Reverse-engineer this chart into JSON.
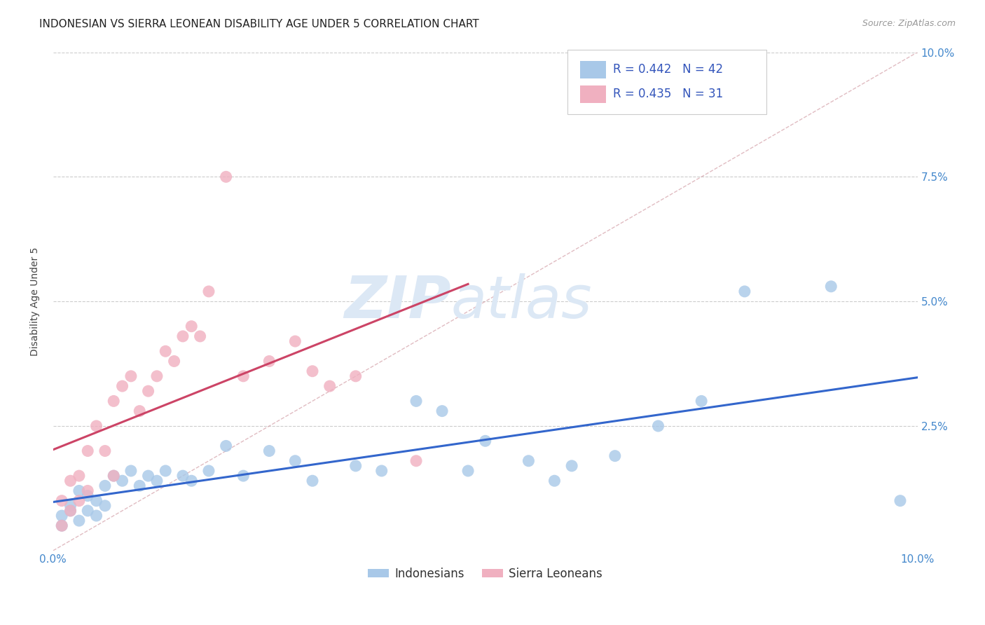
{
  "title": "INDONESIAN VS SIERRA LEONEAN DISABILITY AGE UNDER 5 CORRELATION CHART",
  "source": "Source: ZipAtlas.com",
  "ylabel": "Disability Age Under 5",
  "xlim": [
    0.0,
    0.1
  ],
  "ylim": [
    0.0,
    0.1
  ],
  "background_color": "#ffffff",
  "grid_color": "#cccccc",
  "diagonal_line_color": "#d4a0a8",
  "indonesian_color": "#a8c8e8",
  "sierra_leonean_color": "#f0b0c0",
  "indonesian_line_color": "#3366cc",
  "sierra_leonean_line_color": "#cc4466",
  "watermark_color": "#dce8f5",
  "tick_color": "#4488cc",
  "title_fontsize": 11,
  "axis_label_fontsize": 10,
  "tick_fontsize": 11,
  "legend_fontsize": 12,
  "source_fontsize": 9,
  "indonesian_x": [
    0.001,
    0.001,
    0.002,
    0.002,
    0.003,
    0.003,
    0.004,
    0.004,
    0.005,
    0.005,
    0.006,
    0.006,
    0.007,
    0.008,
    0.009,
    0.01,
    0.011,
    0.012,
    0.013,
    0.015,
    0.016,
    0.018,
    0.02,
    0.022,
    0.025,
    0.028,
    0.03,
    0.035,
    0.038,
    0.042,
    0.045,
    0.048,
    0.05,
    0.055,
    0.058,
    0.06,
    0.065,
    0.07,
    0.075,
    0.08,
    0.09,
    0.098
  ],
  "indonesian_y": [
    0.005,
    0.007,
    0.008,
    0.009,
    0.006,
    0.012,
    0.008,
    0.011,
    0.007,
    0.01,
    0.009,
    0.013,
    0.015,
    0.014,
    0.016,
    0.013,
    0.015,
    0.014,
    0.016,
    0.015,
    0.014,
    0.016,
    0.021,
    0.015,
    0.02,
    0.018,
    0.014,
    0.017,
    0.016,
    0.03,
    0.028,
    0.016,
    0.022,
    0.018,
    0.014,
    0.017,
    0.019,
    0.025,
    0.03,
    0.052,
    0.053,
    0.01
  ],
  "sierra_x": [
    0.001,
    0.001,
    0.002,
    0.002,
    0.003,
    0.003,
    0.004,
    0.004,
    0.005,
    0.006,
    0.007,
    0.007,
    0.008,
    0.009,
    0.01,
    0.011,
    0.012,
    0.013,
    0.014,
    0.015,
    0.016,
    0.017,
    0.018,
    0.02,
    0.022,
    0.025,
    0.028,
    0.03,
    0.032,
    0.035,
    0.042
  ],
  "sierra_y": [
    0.005,
    0.01,
    0.008,
    0.014,
    0.01,
    0.015,
    0.012,
    0.02,
    0.025,
    0.02,
    0.015,
    0.03,
    0.033,
    0.035,
    0.028,
    0.032,
    0.035,
    0.04,
    0.038,
    0.043,
    0.045,
    0.043,
    0.052,
    0.075,
    0.035,
    0.038,
    0.042,
    0.036,
    0.033,
    0.035,
    0.018
  ]
}
